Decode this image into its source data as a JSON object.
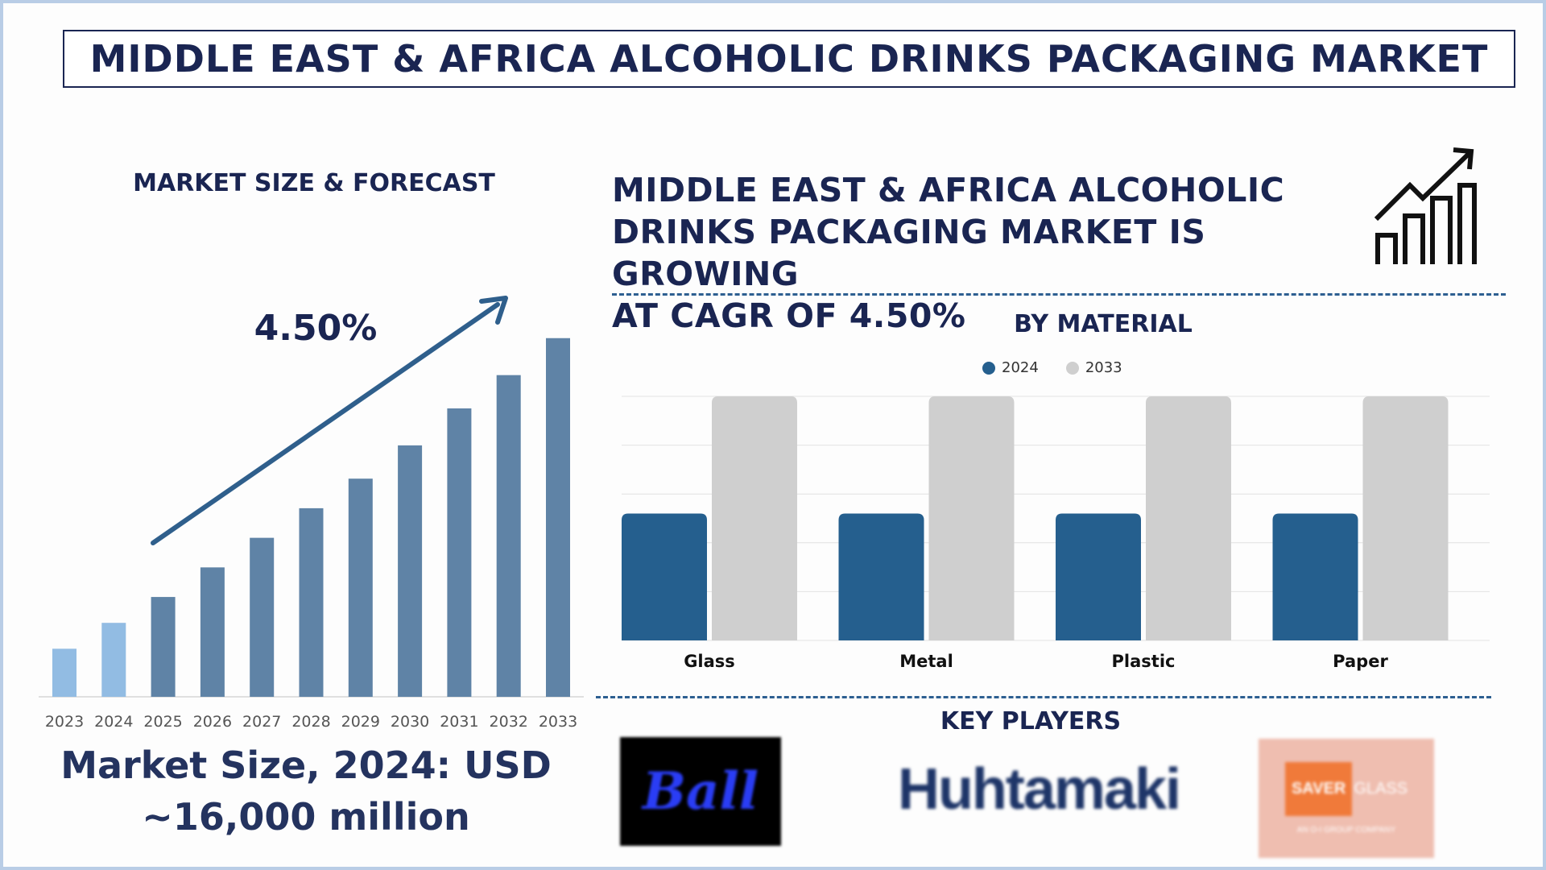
{
  "header": {
    "title": "MIDDLE EAST & AFRICA ALCOHOLIC DRINKS PACKAGING MARKET"
  },
  "forecast": {
    "title": "MARKET SIZE & FORECAST",
    "cagr_label": "4.50%",
    "market_size_line1": "Market Size, 2024: USD",
    "market_size_line2": "~16,000 million"
  },
  "headline": {
    "line1": "MIDDLE EAST & AFRICA ALCOHOLIC",
    "line2": "DRINKS PACKAGING MARKET IS GROWING",
    "line3": "AT CAGR OF 4.50%"
  },
  "material": {
    "title": "BY MATERIAL"
  },
  "players": {
    "title": "KEY PLAYERS",
    "logos": [
      "Ball",
      "Huhtamaki",
      "SAVER",
      "GLASS",
      "AN O-I GROUP COMPANY"
    ]
  },
  "colors": {
    "navy": "#1a2552",
    "bar_history": "#92bce3",
    "bar_forecast": "#5f83a6",
    "trend_arrow": "#2f5f8c",
    "series_2024": "#255f8e",
    "series_2033": "#cfcfcf"
  },
  "icons": [
    "growth-chart-icon",
    "trend-arrow-icon"
  ],
  "chart_data": [
    {
      "type": "bar",
      "title": "MARKET SIZE & FORECAST",
      "categories": [
        "2023",
        "2024",
        "2025",
        "2026",
        "2027",
        "2028",
        "2029",
        "2030",
        "2031",
        "2032",
        "2033"
      ],
      "values": [
        15.3,
        16.0,
        16.7,
        17.5,
        18.3,
        19.1,
        19.9,
        20.8,
        21.8,
        22.7,
        23.7
      ],
      "highlight_through": "2024",
      "annotation": "4.50%",
      "ylim": [
        14,
        24
      ]
    },
    {
      "type": "bar",
      "title": "BY MATERIAL",
      "categories": [
        "Glass",
        "Metal",
        "Plastic",
        "Paper"
      ],
      "series": [
        {
          "name": "2024",
          "values": [
            2.6,
            2.6,
            2.6,
            2.6
          ]
        },
        {
          "name": "2033",
          "values": [
            5,
            5,
            5,
            5
          ]
        }
      ],
      "ylim": [
        0,
        5
      ],
      "grid": true,
      "legend": "top-center"
    }
  ]
}
